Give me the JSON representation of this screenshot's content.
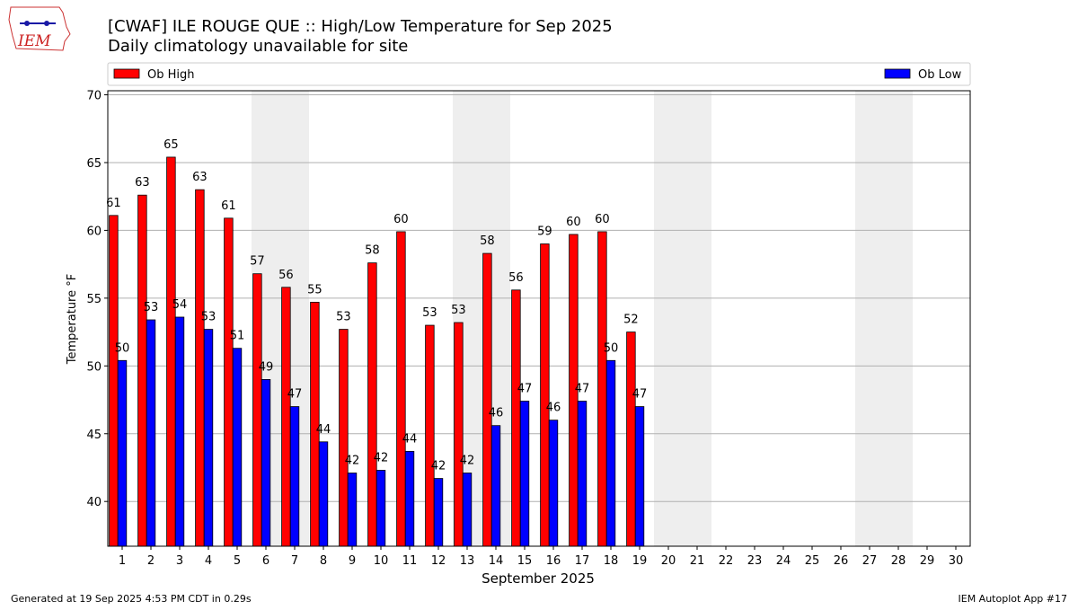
{
  "chart_data": {
    "type": "bar",
    "logo_text": "IEM",
    "title": "[CWAF] ILE ROUGE  QUE :: High/Low Temperature for Sep 2025",
    "subtitle": "Daily climatology unavailable for site",
    "x_label": "September 2025",
    "y_label": "Temperature °F",
    "footer_left": "Generated at 19 Sep 2025 4:53 PM CDT in 0.29s",
    "footer_right": "IEM Autoplot App #17",
    "categories": [
      "1",
      "2",
      "3",
      "4",
      "5",
      "6",
      "7",
      "8",
      "9",
      "10",
      "11",
      "12",
      "13",
      "14",
      "15",
      "16",
      "17",
      "18",
      "19",
      "20",
      "21",
      "22",
      "23",
      "24",
      "25",
      "26",
      "27",
      "28",
      "29",
      "30"
    ],
    "shaded_categories": [
      "6",
      "7",
      "13",
      "14",
      "20",
      "21",
      "27",
      "28"
    ],
    "shade_color": "#eeeeee",
    "series": [
      {
        "name": "Ob High",
        "color": "#ff0000",
        "values": [
          61.1,
          62.6,
          65.4,
          63.0,
          60.9,
          56.8,
          55.8,
          54.7,
          52.7,
          57.6,
          59.9,
          53.0,
          53.2,
          58.3,
          55.6,
          59.0,
          59.7,
          59.9,
          52.5,
          null,
          null,
          null,
          null,
          null,
          null,
          null,
          null,
          null,
          null,
          null
        ],
        "value_labels": [
          "61",
          "63",
          "65",
          "63",
          "61",
          "57",
          "56",
          "55",
          "53",
          "58",
          "60",
          "53",
          "53",
          "58",
          "56",
          "59",
          "60",
          "60",
          "52",
          null,
          null,
          null,
          null,
          null,
          null,
          null,
          null,
          null,
          null,
          null
        ]
      },
      {
        "name": "Ob Low",
        "color": "#0000ff",
        "values": [
          50.4,
          53.4,
          53.6,
          52.7,
          51.3,
          49.0,
          47.0,
          44.4,
          42.1,
          42.3,
          43.7,
          41.7,
          42.1,
          45.6,
          47.4,
          46.0,
          47.4,
          50.4,
          47.0,
          null,
          null,
          null,
          null,
          null,
          null,
          null,
          null,
          null,
          null,
          null
        ],
        "value_labels": [
          "50",
          "53",
          "54",
          "53",
          "51",
          "49",
          "47",
          "44",
          "42",
          "42",
          "44",
          "42",
          "42",
          "46",
          "47",
          "46",
          "47",
          "50",
          "47",
          null,
          null,
          null,
          null,
          null,
          null,
          null,
          null,
          null,
          null,
          null
        ]
      }
    ],
    "ylim": [
      36.7,
      70.3
    ],
    "yticks": [
      40,
      45,
      50,
      55,
      60,
      65,
      70
    ],
    "grid": true
  }
}
